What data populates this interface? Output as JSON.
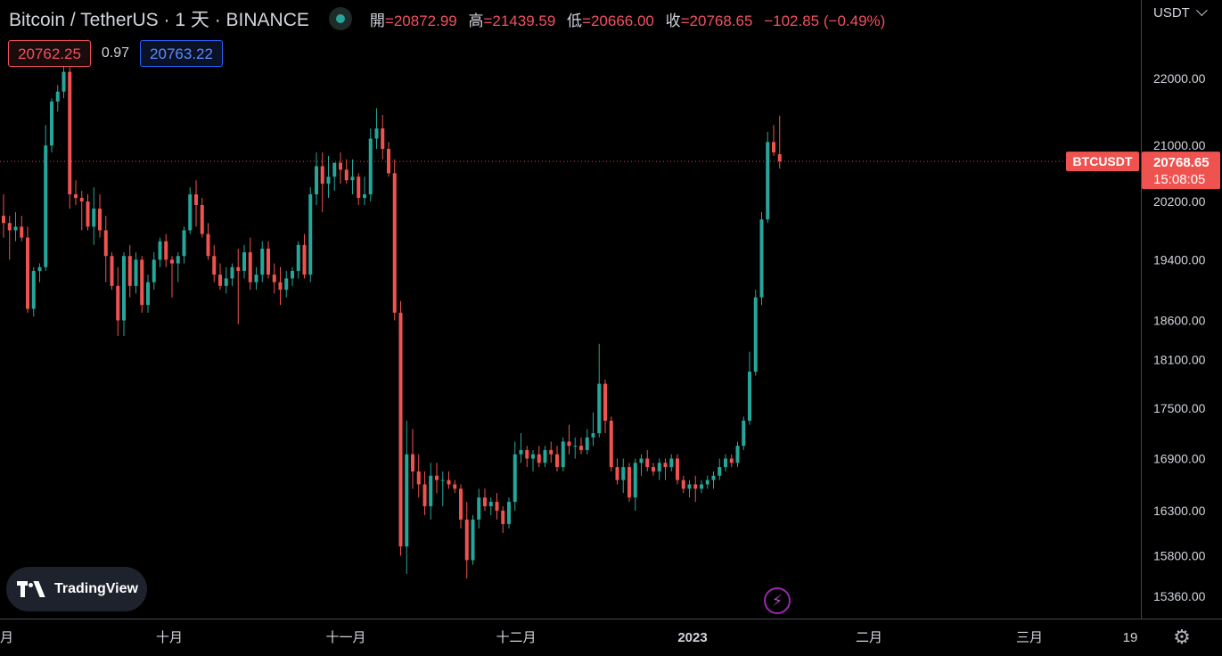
{
  "header": {
    "symbol": "Bitcoin / TetherUS · 1 天 · BINANCE",
    "open_label": "開",
    "open_value": "=20872.99",
    "high_label": "高",
    "high_value": "=21439.59",
    "low_label": "低",
    "low_value": "=20666.00",
    "close_label": "收",
    "close_value": "=20768.65",
    "change": "−102.85 (−0.49%)"
  },
  "quote": {
    "sell": "20762.25",
    "spread": "0.97",
    "buy": "20763.22"
  },
  "currency": "USDT",
  "logo_text": "TradingView",
  "colors": {
    "up": "#26a69a",
    "down": "#ef5350",
    "background": "#000000"
  },
  "chart_data": {
    "type": "candlestick",
    "title": "Bitcoin / TetherUS · 1 天 · BINANCE",
    "y_axis": {
      "ticks": [
        "22000.00",
        "21000.00",
        "20200.00",
        "19400.00",
        "18600.00",
        "18100.00",
        "17500.00",
        "16900.00",
        "16300.00",
        "15800.00",
        "15360.00"
      ],
      "log_scale": true
    },
    "x_axis": {
      "ticks": [
        "月",
        "十月",
        "十一月",
        "十二月",
        "2023",
        "二月",
        "三月",
        "19"
      ]
    },
    "last_price": {
      "label": "BTCUSDT",
      "value": "20768.65",
      "countdown": "15:08:05"
    },
    "ohlc": [
      [
        20000,
        20300,
        19700,
        19900
      ],
      [
        19900,
        20000,
        19400,
        19800
      ],
      [
        19800,
        20050,
        19650,
        19850
      ],
      [
        19850,
        20000,
        19650,
        19700
      ],
      [
        19700,
        19850,
        18700,
        18750
      ],
      [
        18750,
        19300,
        18650,
        19250
      ],
      [
        19250,
        19350,
        19100,
        19300
      ],
      [
        19300,
        21300,
        19250,
        21000
      ],
      [
        21000,
        21700,
        20900,
        21650
      ],
      [
        21650,
        21900,
        21500,
        21800
      ],
      [
        21800,
        22400,
        21700,
        22100
      ],
      [
        22100,
        22600,
        20100,
        20300
      ],
      [
        20300,
        20500,
        20150,
        20250
      ],
      [
        20250,
        20350,
        19800,
        20200
      ],
      [
        20200,
        20300,
        19800,
        19850
      ],
      [
        19850,
        20400,
        19600,
        20100
      ],
      [
        20100,
        20300,
        19700,
        19800
      ],
      [
        19800,
        20000,
        19100,
        19450
      ],
      [
        19450,
        19500,
        19000,
        19050
      ],
      [
        19050,
        19300,
        18400,
        18600
      ],
      [
        18600,
        19500,
        18400,
        19450
      ],
      [
        19450,
        19600,
        18900,
        19050
      ],
      [
        19050,
        19500,
        18950,
        19400
      ],
      [
        19400,
        19450,
        18700,
        18800
      ],
      [
        18800,
        19200,
        18700,
        19100
      ],
      [
        19100,
        19500,
        19000,
        19400
      ],
      [
        19400,
        19700,
        19300,
        19650
      ],
      [
        19650,
        19750,
        19300,
        19400
      ],
      [
        19400,
        19450,
        18900,
        19350
      ],
      [
        19350,
        19500,
        19100,
        19450
      ],
      [
        19450,
        19850,
        19350,
        19800
      ],
      [
        19800,
        20400,
        19750,
        20300
      ],
      [
        20300,
        20500,
        19850,
        20150
      ],
      [
        20150,
        20250,
        19700,
        19750
      ],
      [
        19750,
        19900,
        19400,
        19450
      ],
      [
        19450,
        19600,
        19100,
        19200
      ],
      [
        19200,
        19350,
        19000,
        19050
      ],
      [
        19050,
        19300,
        18950,
        19150
      ],
      [
        19150,
        19350,
        19050,
        19300
      ],
      [
        19300,
        19550,
        18550,
        19250
      ],
      [
        19250,
        19600,
        19150,
        19500
      ],
      [
        19500,
        19700,
        19000,
        19100
      ],
      [
        19100,
        19300,
        19000,
        19200
      ],
      [
        19200,
        19650,
        19100,
        19550
      ],
      [
        19550,
        19650,
        19150,
        19200
      ],
      [
        19200,
        19350,
        18950,
        19100
      ],
      [
        19100,
        19300,
        18800,
        19000
      ],
      [
        19000,
        19250,
        18900,
        19150
      ],
      [
        19150,
        19300,
        19050,
        19250
      ],
      [
        19250,
        19650,
        19150,
        19600
      ],
      [
        19600,
        19750,
        19150,
        19200
      ],
      [
        19200,
        20400,
        19100,
        20300
      ],
      [
        20300,
        20900,
        20150,
        20700
      ],
      [
        20700,
        20900,
        20050,
        20450
      ],
      [
        20450,
        20850,
        20250,
        20550
      ],
      [
        20550,
        20750,
        20350,
        20750
      ],
      [
        20750,
        20900,
        20450,
        20650
      ],
      [
        20650,
        20800,
        20450,
        20500
      ],
      [
        20500,
        20800,
        20300,
        20550
      ],
      [
        20550,
        20600,
        20150,
        20250
      ],
      [
        20250,
        20550,
        20150,
        20300
      ],
      [
        20300,
        21250,
        20200,
        21100
      ],
      [
        21100,
        21550,
        20950,
        21250
      ],
      [
        21250,
        21450,
        20800,
        20950
      ],
      [
        20950,
        21050,
        20550,
        20600
      ],
      [
        20600,
        20800,
        18600,
        18700
      ],
      [
        18700,
        18850,
        15800,
        15900
      ],
      [
        15900,
        17350,
        15600,
        16950
      ],
      [
        16950,
        17250,
        16550,
        16750
      ],
      [
        16750,
        16950,
        16450,
        16600
      ],
      [
        16600,
        16750,
        16250,
        16350
      ],
      [
        16350,
        16850,
        16200,
        16700
      ],
      [
        16700,
        16850,
        16500,
        16650
      ],
      [
        16650,
        16750,
        16350,
        16650
      ],
      [
        16650,
        16750,
        16550,
        16600
      ],
      [
        16600,
        16650,
        16500,
        16550
      ],
      [
        16550,
        16600,
        16100,
        16200
      ],
      [
        16200,
        16400,
        15550,
        15750
      ],
      [
        15750,
        16250,
        15700,
        16200
      ],
      [
        16200,
        16550,
        16100,
        16450
      ],
      [
        16450,
        16550,
        16300,
        16350
      ],
      [
        16350,
        16450,
        16250,
        16400
      ],
      [
        16400,
        16500,
        16200,
        16300
      ],
      [
        16300,
        16350,
        16050,
        16150
      ],
      [
        16150,
        16450,
        16100,
        16400
      ],
      [
        16400,
        17100,
        16300,
        16950
      ],
      [
        16950,
        17200,
        16850,
        17000
      ],
      [
        17000,
        17050,
        16800,
        16900
      ],
      [
        16900,
        17000,
        16750,
        16950
      ],
      [
        16950,
        17050,
        16800,
        16850
      ],
      [
        16850,
        17050,
        16800,
        17000
      ],
      [
        17000,
        17100,
        16850,
        16950
      ],
      [
        16950,
        17050,
        16750,
        16800
      ],
      [
        16800,
        17150,
        16750,
        17100
      ],
      [
        17100,
        17300,
        16950,
        17050
      ],
      [
        17050,
        17150,
        16900,
        17050
      ],
      [
        17050,
        17150,
        16950,
        17000
      ],
      [
        17000,
        17250,
        16950,
        17150
      ],
      [
        17150,
        17450,
        17050,
        17200
      ],
      [
        17200,
        18300,
        17150,
        17800
      ],
      [
        17800,
        17850,
        17200,
        17350
      ],
      [
        17350,
        17400,
        16750,
        16800
      ],
      [
        16800,
        16900,
        16600,
        16650
      ],
      [
        16650,
        16900,
        16500,
        16800
      ],
      [
        16800,
        16850,
        16400,
        16450
      ],
      [
        16450,
        16900,
        16300,
        16850
      ],
      [
        16850,
        16950,
        16700,
        16900
      ],
      [
        16900,
        17000,
        16750,
        16800
      ],
      [
        16800,
        16850,
        16700,
        16750
      ],
      [
        16750,
        16900,
        16650,
        16850
      ],
      [
        16850,
        16900,
        16650,
        16800
      ],
      [
        16800,
        16950,
        16750,
        16900
      ],
      [
        16900,
        16950,
        16600,
        16650
      ],
      [
        16650,
        16700,
        16500,
        16550
      ],
      [
        16550,
        16650,
        16450,
        16600
      ],
      [
        16600,
        16700,
        16400,
        16550
      ],
      [
        16550,
        16650,
        16500,
        16600
      ],
      [
        16600,
        16700,
        16550,
        16650
      ],
      [
        16650,
        16750,
        16550,
        16700
      ],
      [
        16700,
        16900,
        16650,
        16800
      ],
      [
        16800,
        16950,
        16750,
        16900
      ],
      [
        16900,
        16950,
        16800,
        16850
      ],
      [
        16850,
        17100,
        16800,
        17050
      ],
      [
        17050,
        17400,
        17000,
        17350
      ],
      [
        17350,
        18200,
        17300,
        17950
      ],
      [
        17950,
        19000,
        17900,
        18900
      ],
      [
        18900,
        20050,
        18800,
        19950
      ],
      [
        19950,
        21200,
        19900,
        21050
      ],
      [
        21050,
        21300,
        20850,
        20900
      ],
      [
        20873,
        21440,
        20666,
        20769
      ]
    ]
  }
}
